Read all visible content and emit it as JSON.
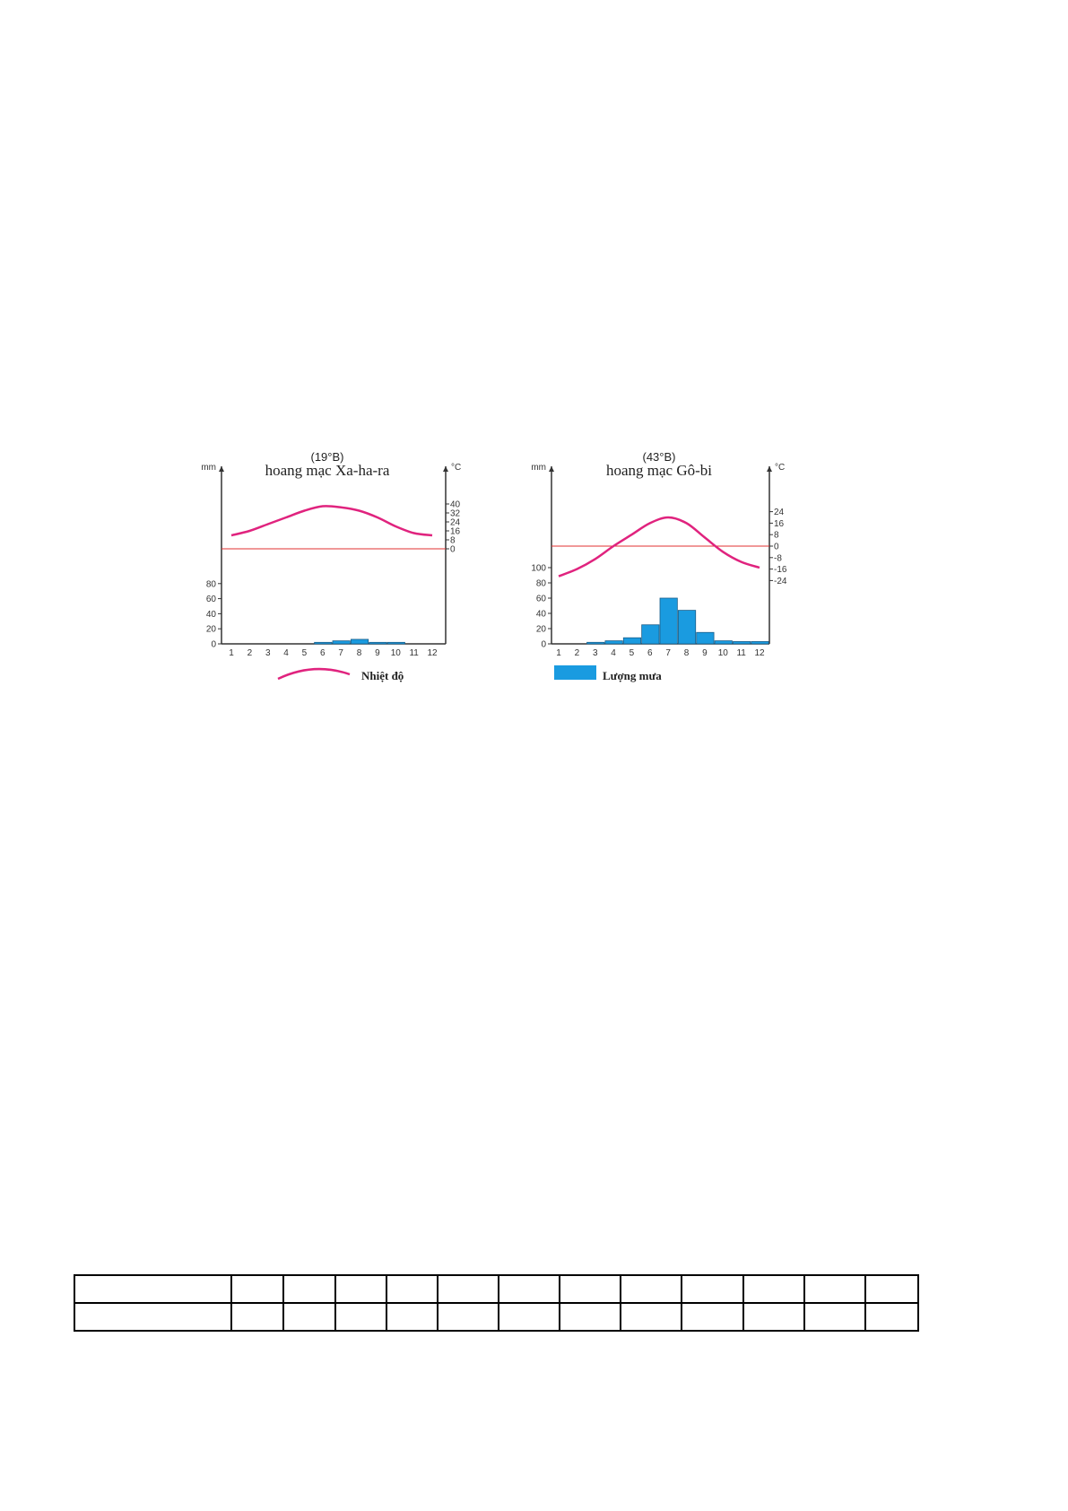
{
  "chart_data": [
    {
      "type": "bar+line",
      "subtitle": "(19°B)",
      "title": "hoang mạc Xa-ha-ra",
      "left_unit": "mm",
      "right_unit": "°C",
      "categories": [
        "1",
        "2",
        "3",
        "4",
        "5",
        "6",
        "7",
        "8",
        "9",
        "10",
        "11",
        "12"
      ],
      "rainfall_ticks": [
        "0",
        "20",
        "40",
        "60",
        "80"
      ],
      "temperature_ticks": [
        "0",
        "8",
        "16",
        "24",
        "32",
        "40"
      ],
      "rainfall_ylim": [
        0,
        100
      ],
      "temperature_ylim": [
        -8,
        48
      ],
      "rainfall": [
        0,
        0,
        0,
        0,
        0,
        2,
        4,
        6,
        2,
        2,
        0,
        0
      ],
      "temperature": [
        12,
        16,
        22,
        28,
        34,
        38,
        37,
        34,
        28,
        20,
        14,
        12
      ]
    },
    {
      "type": "bar+line",
      "subtitle": "(43°B)",
      "title": "hoang mạc Gô-bi",
      "left_unit": "mm",
      "right_unit": "°C",
      "categories": [
        "1",
        "2",
        "3",
        "4",
        "5",
        "6",
        "7",
        "8",
        "9",
        "10",
        "11",
        "12"
      ],
      "rainfall_ticks": [
        "0",
        "20",
        "40",
        "60",
        "80",
        "100"
      ],
      "temperature_ticks": [
        "-24",
        "-16",
        "-8",
        "0",
        "8",
        "16",
        "24"
      ],
      "rainfall_ylim": [
        0,
        100
      ],
      "temperature_ylim": [
        -30,
        40
      ],
      "rainfall": [
        0,
        0,
        2,
        4,
        8,
        25,
        60,
        44,
        15,
        4,
        3,
        3
      ],
      "temperature": [
        -21,
        -16,
        -9,
        0,
        8,
        16,
        20,
        16,
        6,
        -4,
        -11,
        -15
      ]
    }
  ],
  "legend": {
    "temperature": "Nhiệt độ",
    "rainfall": "Lượng mưa"
  },
  "colors": {
    "temperature": "#e0237e",
    "rainfall": "#1a9be0",
    "zero_line": "#e03030",
    "axis": "#333333"
  },
  "table": {
    "rows": 2,
    "columns": 13
  }
}
